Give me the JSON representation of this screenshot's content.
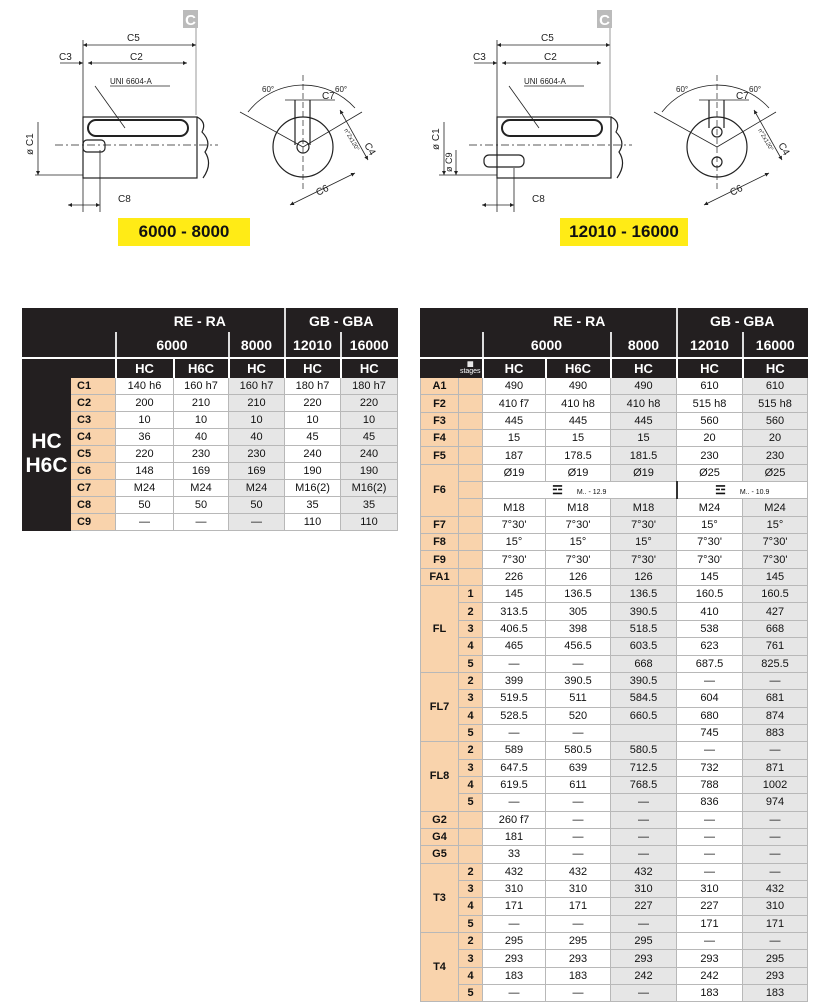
{
  "drawings": [
    {
      "badge": "C",
      "range": "6000 - 8000",
      "labels": {
        "c5": "C5",
        "c3": "C3",
        "c2": "C2",
        "uni": "UNI 6604-A",
        "c1": "ø C1",
        "c8": "C8",
        "a1": "60°",
        "a2": "60°",
        "c7": "C7",
        "c4": "C4",
        "c6": "C6",
        "holes": "n°2x120°"
      }
    },
    {
      "badge": "C",
      "range": "12010 - 16000",
      "labels": {
        "c5": "C5",
        "c3": "C3",
        "c2": "C2",
        "uni": "UNI 6604-A",
        "c1": "ø C1",
        "c9": "ø C9",
        "c8": "C8",
        "a1": "60°",
        "a2": "60°",
        "c7": "C7",
        "c4": "C4",
        "c6": "C6",
        "holes": "n°2x120°"
      }
    }
  ],
  "header": {
    "groups": [
      "RE - RA",
      "GB - GBA"
    ],
    "sizes": [
      "6000",
      "8000",
      "12010",
      "16000"
    ],
    "types": [
      "HC",
      "H6C",
      "HC",
      "HC",
      "HC"
    ],
    "stages_label": "stages"
  },
  "table_c": {
    "side_label": [
      "HC",
      "H6C"
    ],
    "rows": [
      {
        "label": "C1",
        "values": [
          "140 h6",
          "160 h7",
          "160 h7",
          "180 h7",
          "180 h7"
        ]
      },
      {
        "label": "C2",
        "values": [
          "200",
          "210",
          "210",
          "220",
          "220"
        ]
      },
      {
        "label": "C3",
        "values": [
          "10",
          "10",
          "10",
          "10",
          "10"
        ]
      },
      {
        "label": "C4",
        "values": [
          "36",
          "40",
          "40",
          "45",
          "45"
        ]
      },
      {
        "label": "C5",
        "values": [
          "220",
          "230",
          "230",
          "240",
          "240"
        ]
      },
      {
        "label": "C6",
        "values": [
          "148",
          "169",
          "169",
          "190",
          "190"
        ]
      },
      {
        "label": "C7",
        "values": [
          "M24",
          "M24",
          "M24",
          "M16(2)",
          "M16(2)"
        ]
      },
      {
        "label": "C8",
        "values": [
          "50",
          "50",
          "50",
          "35",
          "35"
        ]
      },
      {
        "label": "C9",
        "values": [
          "—",
          "—",
          "—",
          "110",
          "110"
        ]
      }
    ]
  },
  "table_f": {
    "groups": [
      {
        "label": "A1",
        "rows": [
          {
            "stage": "",
            "values": [
              "490",
              "490",
              "490",
              "610",
              "610"
            ]
          }
        ]
      },
      {
        "label": "F2",
        "rows": [
          {
            "stage": "",
            "values": [
              "410 f7",
              "410 h8",
              "410 h8",
              "515 h8",
              "515 h8"
            ]
          }
        ]
      },
      {
        "label": "F3",
        "rows": [
          {
            "stage": "",
            "values": [
              "445",
              "445",
              "445",
              "560",
              "560"
            ]
          }
        ]
      },
      {
        "label": "F4",
        "rows": [
          {
            "stage": "",
            "values": [
              "15",
              "15",
              "15",
              "20",
              "20"
            ]
          }
        ]
      },
      {
        "label": "F5",
        "rows": [
          {
            "stage": "",
            "values": [
              "187",
              "178.5",
              "181.5",
              "230",
              "230"
            ]
          }
        ]
      },
      {
        "label": "F6",
        "rows": [
          {
            "stage": "",
            "values": [
              "Ø19",
              "Ø19",
              "Ø19",
              "Ø25",
              "Ø25"
            ]
          },
          {
            "stage": "",
            "spans": [
              {
                "text": "M.. - 12.9",
                "cols": 3
              },
              {
                "text": "M.. - 10.9",
                "cols": 2
              }
            ]
          },
          {
            "stage": "",
            "values": [
              "M18",
              "M18",
              "M18",
              "M24",
              "M24"
            ]
          }
        ]
      },
      {
        "label": "F7",
        "rows": [
          {
            "stage": "",
            "values": [
              "7°30'",
              "7°30'",
              "7°30'",
              "15°",
              "15°"
            ]
          }
        ]
      },
      {
        "label": "F8",
        "rows": [
          {
            "stage": "",
            "values": [
              "15°",
              "15°",
              "15°",
              "7°30'",
              "7°30'"
            ]
          }
        ]
      },
      {
        "label": "F9",
        "rows": [
          {
            "stage": "",
            "values": [
              "7°30'",
              "7°30'",
              "7°30'",
              "7°30'",
              "7°30'"
            ]
          }
        ]
      },
      {
        "label": "FA1",
        "rows": [
          {
            "stage": "",
            "values": [
              "226",
              "126",
              "126",
              "145",
              "145"
            ]
          }
        ]
      },
      {
        "label": "FL",
        "rows": [
          {
            "stage": "1",
            "values": [
              "145",
              "136.5",
              "136.5",
              "160.5",
              "160.5"
            ]
          },
          {
            "stage": "2",
            "values": [
              "313.5",
              "305",
              "390.5",
              "410",
              "427"
            ]
          },
          {
            "stage": "3",
            "values": [
              "406.5",
              "398",
              "518.5",
              "538",
              "668"
            ]
          },
          {
            "stage": "4",
            "values": [
              "465",
              "456.5",
              "603.5",
              "623",
              "761"
            ]
          },
          {
            "stage": "5",
            "values": [
              "—",
              "—",
              "668",
              "687.5",
              "825.5"
            ]
          }
        ]
      },
      {
        "label": "FL7",
        "rows": [
          {
            "stage": "2",
            "values": [
              "399",
              "390.5",
              "390.5",
              "—",
              "—"
            ]
          },
          {
            "stage": "3",
            "values": [
              "519.5",
              "511",
              "584.5",
              "604",
              "681"
            ]
          },
          {
            "stage": "4",
            "values": [
              "528.5",
              "520",
              "660.5",
              "680",
              "874"
            ]
          },
          {
            "stage": "5",
            "values": [
              "—",
              "—",
              "",
              "745",
              "883"
            ]
          }
        ]
      },
      {
        "label": "FL8",
        "rows": [
          {
            "stage": "2",
            "values": [
              "589",
              "580.5",
              "580.5",
              "—",
              "—"
            ]
          },
          {
            "stage": "3",
            "values": [
              "647.5",
              "639",
              "712.5",
              "732",
              "871"
            ]
          },
          {
            "stage": "4",
            "values": [
              "619.5",
              "611",
              "768.5",
              "788",
              "1002"
            ]
          },
          {
            "stage": "5",
            "values": [
              "—",
              "—",
              "—",
              "836",
              "974"
            ]
          }
        ]
      },
      {
        "label": "G2",
        "rows": [
          {
            "stage": "",
            "values": [
              "260 f7",
              "—",
              "—",
              "—",
              "—"
            ]
          }
        ]
      },
      {
        "label": "G4",
        "rows": [
          {
            "stage": "",
            "values": [
              "181",
              "—",
              "—",
              "—",
              "—"
            ]
          }
        ]
      },
      {
        "label": "G5",
        "rows": [
          {
            "stage": "",
            "values": [
              "33",
              "—",
              "—",
              "—",
              "—"
            ]
          }
        ]
      },
      {
        "label": "T3",
        "rows": [
          {
            "stage": "2",
            "values": [
              "432",
              "432",
              "432",
              "—",
              "—"
            ]
          },
          {
            "stage": "3",
            "values": [
              "310",
              "310",
              "310",
              "310",
              "432"
            ]
          },
          {
            "stage": "4",
            "values": [
              "171",
              "171",
              "227",
              "227",
              "310"
            ]
          },
          {
            "stage": "5",
            "values": [
              "—",
              "—",
              "—",
              "171",
              "171"
            ]
          }
        ]
      },
      {
        "label": "T4",
        "rows": [
          {
            "stage": "2",
            "values": [
              "295",
              "295",
              "295",
              "—",
              "—"
            ]
          },
          {
            "stage": "3",
            "values": [
              "293",
              "293",
              "293",
              "293",
              "295"
            ]
          },
          {
            "stage": "4",
            "values": [
              "183",
              "183",
              "242",
              "242",
              "293"
            ]
          },
          {
            "stage": "5",
            "values": [
              "—",
              "—",
              "—",
              "183",
              "183"
            ]
          }
        ]
      }
    ]
  },
  "colors": {
    "header": "#231f20",
    "label_bg": "#f9d3ac",
    "highlight": "#ffeb16",
    "alt_col": "#e6e6e6"
  }
}
